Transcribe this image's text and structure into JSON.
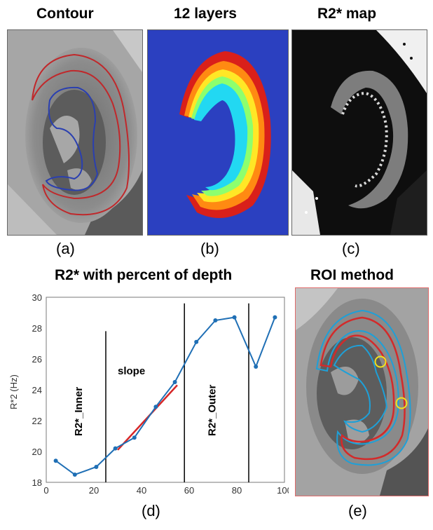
{
  "panels": {
    "a": {
      "title": "Contour",
      "label": "(a)"
    },
    "b": {
      "title": "12 layers",
      "label": "(b)"
    },
    "c": {
      "title": "R2* map",
      "label": "(c)"
    },
    "d": {
      "title": "R2* with percent of depth",
      "label": "(d)"
    },
    "e": {
      "title": "ROI method",
      "label": "(e)"
    }
  },
  "chart_data": {
    "type": "line",
    "title": "R2* with percent of depth",
    "ylabel": "R*2 (Hz)",
    "xlim": [
      0,
      100
    ],
    "ylim": [
      18,
      30
    ],
    "xticks": [
      0,
      20,
      40,
      60,
      80,
      100
    ],
    "yticks": [
      18,
      20,
      22,
      24,
      26,
      28,
      30
    ],
    "series": [
      {
        "color": "#1f6fb5",
        "x": [
          4,
          12,
          21,
          29,
          37,
          46,
          54,
          63,
          71,
          79,
          88,
          96
        ],
        "y": [
          19.4,
          18.5,
          19.0,
          20.2,
          20.9,
          22.9,
          24.5,
          27.1,
          28.5,
          28.7,
          25.5,
          28.7
        ]
      }
    ],
    "slope_line": {
      "color": "#d62728",
      "x": [
        30,
        55
      ],
      "y": [
        20.1,
        24.3
      ]
    },
    "vlines": [
      25,
      58,
      85
    ],
    "annotations": {
      "inner": "R2*_Inner",
      "slope": "slope",
      "outer": "R2*_Outer"
    }
  }
}
